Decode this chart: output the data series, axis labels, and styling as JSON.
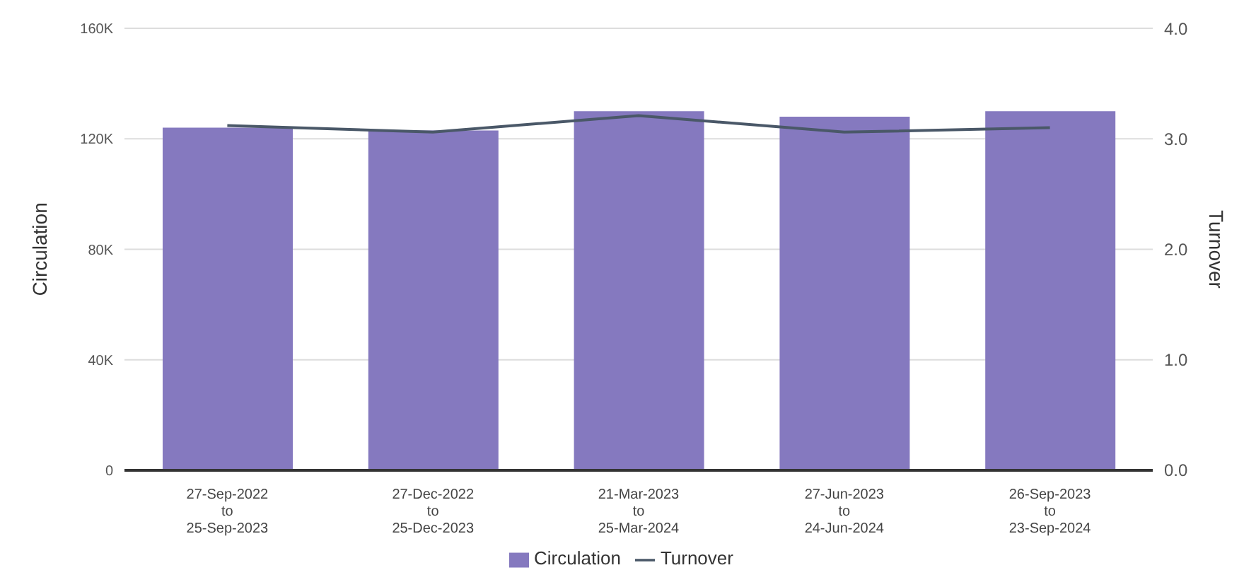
{
  "chart_data": {
    "type": "bar",
    "categories": [
      "27-Sep-2022\nto\n25-Sep-2023",
      "27-Dec-2022\nto\n25-Dec-2023",
      "21-Mar-2023\nto\n25-Mar-2024",
      "27-Jun-2023\nto\n24-Jun-2024",
      "26-Sep-2023\nto\n23-Sep-2024"
    ],
    "ylabel": "Circulation",
    "y2label": "Turnover",
    "series": [
      {
        "name": "Circulation",
        "color": "#8579bf",
        "values": [
          124000,
          123000,
          130000,
          128000,
          130000
        ]
      },
      {
        "name": "Turnover",
        "type": "line",
        "axis": "y2",
        "color": "#4a5868",
        "values": [
          3.12,
          3.06,
          3.21,
          3.06,
          3.1
        ]
      }
    ],
    "ylim": [
      0,
      160000
    ],
    "yticks": [
      {
        "value": 0,
        "label": "0"
      },
      {
        "value": 40000,
        "label": "40K"
      },
      {
        "value": 80000,
        "label": "80K"
      },
      {
        "value": 120000,
        "label": "120K"
      },
      {
        "value": 160000,
        "label": "160K"
      }
    ],
    "y2lim": [
      0,
      4
    ],
    "y2ticks": [
      {
        "value": 0,
        "label": "0.0"
      },
      {
        "value": 1,
        "label": "1.0"
      },
      {
        "value": 2,
        "label": "2.0"
      },
      {
        "value": 3,
        "label": "3.0"
      },
      {
        "value": 4,
        "label": "4.0"
      }
    ],
    "grid": "y",
    "legend": "bottom",
    "marker": "none"
  }
}
